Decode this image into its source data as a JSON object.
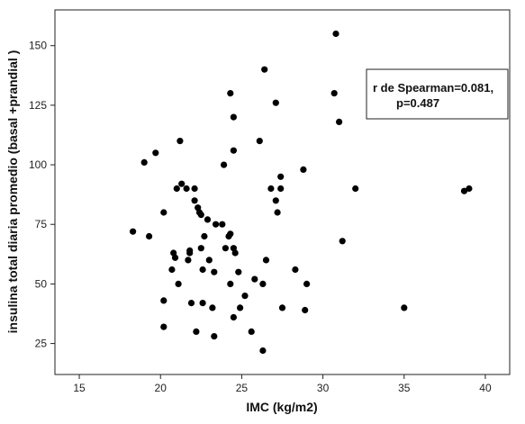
{
  "chart_data": {
    "type": "scatter",
    "xlabel": "IMC (kg/m2)",
    "ylabel": "insulina total diaria promedio (basal +prandial )",
    "xlim": [
      13.5,
      41.5
    ],
    "ylim": [
      12,
      165
    ],
    "xticks": [
      15,
      20,
      25,
      30,
      35,
      40
    ],
    "yticks": [
      25,
      50,
      75,
      100,
      125,
      150
    ],
    "grid": false,
    "point_color": "#000000",
    "annotation": {
      "line1": "r de Spearman=0.081,",
      "line2": "p=0.487"
    },
    "points": [
      {
        "x": 18.3,
        "y": 72
      },
      {
        "x": 19.0,
        "y": 101
      },
      {
        "x": 19.3,
        "y": 70
      },
      {
        "x": 19.7,
        "y": 105
      },
      {
        "x": 20.2,
        "y": 80
      },
      {
        "x": 20.2,
        "y": 43
      },
      {
        "x": 20.2,
        "y": 32
      },
      {
        "x": 20.7,
        "y": 56
      },
      {
        "x": 20.8,
        "y": 63
      },
      {
        "x": 20.9,
        "y": 61
      },
      {
        "x": 21.0,
        "y": 90
      },
      {
        "x": 21.1,
        "y": 50
      },
      {
        "x": 21.2,
        "y": 110
      },
      {
        "x": 21.3,
        "y": 92
      },
      {
        "x": 21.6,
        "y": 90
      },
      {
        "x": 21.7,
        "y": 60
      },
      {
        "x": 21.8,
        "y": 64
      },
      {
        "x": 21.8,
        "y": 63
      },
      {
        "x": 21.9,
        "y": 42
      },
      {
        "x": 22.1,
        "y": 90
      },
      {
        "x": 22.1,
        "y": 85
      },
      {
        "x": 22.2,
        "y": 30
      },
      {
        "x": 22.3,
        "y": 82
      },
      {
        "x": 22.4,
        "y": 80
      },
      {
        "x": 22.5,
        "y": 79
      },
      {
        "x": 22.5,
        "y": 65
      },
      {
        "x": 22.6,
        "y": 56
      },
      {
        "x": 22.6,
        "y": 42
      },
      {
        "x": 22.7,
        "y": 70
      },
      {
        "x": 22.9,
        "y": 77
      },
      {
        "x": 23.0,
        "y": 60
      },
      {
        "x": 23.2,
        "y": 40
      },
      {
        "x": 23.3,
        "y": 55
      },
      {
        "x": 23.3,
        "y": 28
      },
      {
        "x": 23.4,
        "y": 75
      },
      {
        "x": 23.8,
        "y": 75
      },
      {
        "x": 23.9,
        "y": 100
      },
      {
        "x": 24.0,
        "y": 65
      },
      {
        "x": 24.2,
        "y": 70
      },
      {
        "x": 24.3,
        "y": 130
      },
      {
        "x": 24.3,
        "y": 71
      },
      {
        "x": 24.3,
        "y": 50
      },
      {
        "x": 24.5,
        "y": 120
      },
      {
        "x": 24.5,
        "y": 106
      },
      {
        "x": 24.5,
        "y": 65
      },
      {
        "x": 24.5,
        "y": 36
      },
      {
        "x": 24.6,
        "y": 63
      },
      {
        "x": 24.8,
        "y": 55
      },
      {
        "x": 24.9,
        "y": 40
      },
      {
        "x": 25.2,
        "y": 45
      },
      {
        "x": 25.6,
        "y": 30
      },
      {
        "x": 25.8,
        "y": 52
      },
      {
        "x": 26.1,
        "y": 110
      },
      {
        "x": 26.3,
        "y": 50
      },
      {
        "x": 26.3,
        "y": 22
      },
      {
        "x": 26.4,
        "y": 140
      },
      {
        "x": 26.5,
        "y": 60
      },
      {
        "x": 26.8,
        "y": 90
      },
      {
        "x": 27.1,
        "y": 126
      },
      {
        "x": 27.1,
        "y": 85
      },
      {
        "x": 27.2,
        "y": 80
      },
      {
        "x": 27.4,
        "y": 95
      },
      {
        "x": 27.4,
        "y": 90
      },
      {
        "x": 27.5,
        "y": 40
      },
      {
        "x": 28.3,
        "y": 56
      },
      {
        "x": 28.8,
        "y": 98
      },
      {
        "x": 28.9,
        "y": 39
      },
      {
        "x": 29.0,
        "y": 50
      },
      {
        "x": 30.7,
        "y": 130
      },
      {
        "x": 30.8,
        "y": 155
      },
      {
        "x": 31.0,
        "y": 118
      },
      {
        "x": 31.2,
        "y": 68
      },
      {
        "x": 32.0,
        "y": 90
      },
      {
        "x": 35.0,
        "y": 40
      },
      {
        "x": 38.7,
        "y": 89
      },
      {
        "x": 39.0,
        "y": 90
      }
    ]
  }
}
